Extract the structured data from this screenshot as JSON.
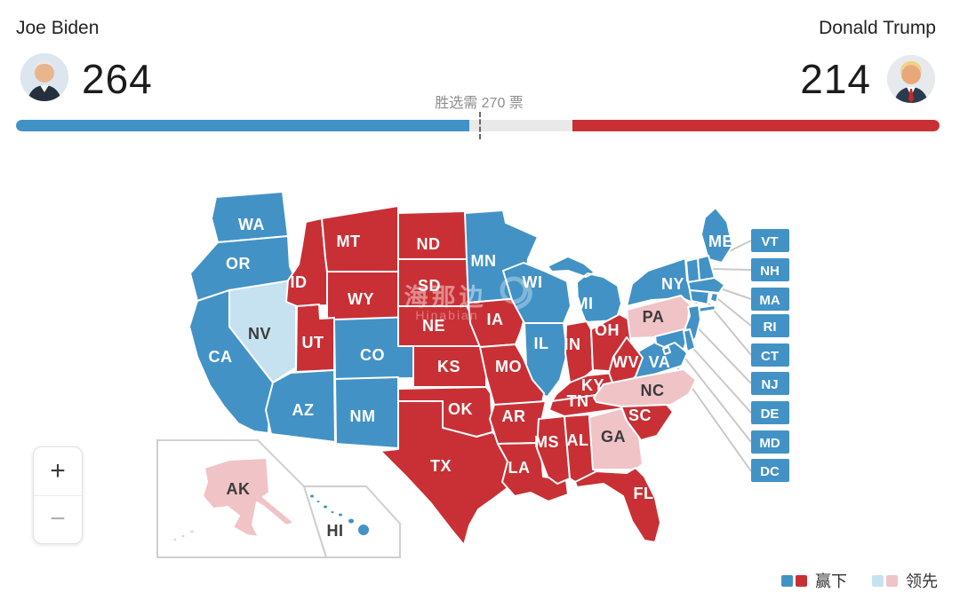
{
  "header": {
    "biden": {
      "name": "Joe Biden",
      "votes": "264"
    },
    "trump": {
      "name": "Donald Trump",
      "votes": "214"
    },
    "needed_label": "胜选需 270 票",
    "bar": {
      "biden_votes": 264,
      "trump_votes": 214,
      "total": 538,
      "threshold": 270
    }
  },
  "colors": {
    "dem_win": "#4292C6",
    "rep_win": "#C83035",
    "dem_lead": "#C6E2F0",
    "rep_lead": "#F0C3C7",
    "win_label": "#FFFFFF",
    "lead_label": "#3B3B3B",
    "bar_track": "#E9E9E9"
  },
  "map": {
    "states": [
      {
        "abbr": "WA",
        "status": "dem_win"
      },
      {
        "abbr": "OR",
        "status": "dem_win"
      },
      {
        "abbr": "CA",
        "status": "dem_win"
      },
      {
        "abbr": "NV",
        "status": "dem_lead"
      },
      {
        "abbr": "ID",
        "status": "rep_win"
      },
      {
        "abbr": "MT",
        "status": "rep_win"
      },
      {
        "abbr": "WY",
        "status": "rep_win"
      },
      {
        "abbr": "UT",
        "status": "rep_win"
      },
      {
        "abbr": "CO",
        "status": "dem_win"
      },
      {
        "abbr": "AZ",
        "status": "dem_win"
      },
      {
        "abbr": "NM",
        "status": "dem_win"
      },
      {
        "abbr": "ND",
        "status": "rep_win"
      },
      {
        "abbr": "SD",
        "status": "rep_win"
      },
      {
        "abbr": "NE",
        "status": "rep_win"
      },
      {
        "abbr": "KS",
        "status": "rep_win"
      },
      {
        "abbr": "OK",
        "status": "rep_win"
      },
      {
        "abbr": "TX",
        "status": "rep_win"
      },
      {
        "abbr": "MN",
        "status": "dem_win"
      },
      {
        "abbr": "IA",
        "status": "rep_win"
      },
      {
        "abbr": "MO",
        "status": "rep_win"
      },
      {
        "abbr": "AR",
        "status": "rep_win"
      },
      {
        "abbr": "LA",
        "status": "rep_win"
      },
      {
        "abbr": "WI",
        "status": "dem_win"
      },
      {
        "abbr": "IL",
        "status": "dem_win"
      },
      {
        "abbr": "MS",
        "status": "rep_win"
      },
      {
        "abbr": "MI",
        "status": "dem_win"
      },
      {
        "abbr": "IN",
        "status": "rep_win"
      },
      {
        "abbr": "OH",
        "status": "rep_win"
      },
      {
        "abbr": "KY",
        "status": "rep_win"
      },
      {
        "abbr": "TN",
        "status": "rep_win"
      },
      {
        "abbr": "WV",
        "status": "rep_win"
      },
      {
        "abbr": "VA",
        "status": "dem_win"
      },
      {
        "abbr": "NC",
        "status": "rep_lead"
      },
      {
        "abbr": "SC",
        "status": "rep_win"
      },
      {
        "abbr": "GA",
        "status": "rep_lead"
      },
      {
        "abbr": "AL",
        "status": "rep_win"
      },
      {
        "abbr": "FL",
        "status": "rep_win"
      },
      {
        "abbr": "PA",
        "status": "rep_lead"
      },
      {
        "abbr": "NY",
        "status": "dem_win"
      },
      {
        "abbr": "ME",
        "status": "dem_win"
      },
      {
        "abbr": "VT",
        "status": "dem_win"
      },
      {
        "abbr": "NH",
        "status": "dem_win"
      },
      {
        "abbr": "MA",
        "status": "dem_win"
      },
      {
        "abbr": "RI",
        "status": "dem_win"
      },
      {
        "abbr": "CT",
        "status": "dem_win"
      },
      {
        "abbr": "NJ",
        "status": "dem_win"
      },
      {
        "abbr": "DE",
        "status": "dem_win"
      },
      {
        "abbr": "MD",
        "status": "dem_win"
      },
      {
        "abbr": "DC",
        "status": "dem_win"
      },
      {
        "abbr": "AK",
        "status": "rep_lead"
      },
      {
        "abbr": "HI",
        "status": "dem_win"
      }
    ]
  },
  "watermark": {
    "line1": "海那边",
    "line2": "Hinabian"
  },
  "zoom_controls": {
    "zoom_in": "+",
    "zoom_out": "−"
  },
  "legend": {
    "won": "赢下",
    "leading": "领先"
  }
}
